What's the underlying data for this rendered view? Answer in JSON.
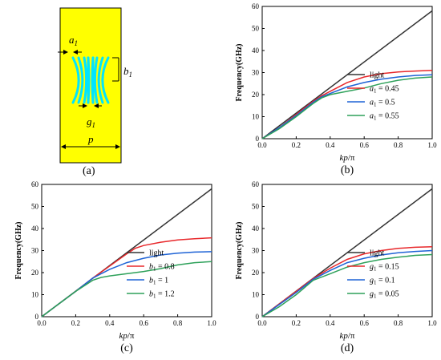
{
  "panel_a": {
    "caption": "(a)",
    "labels": {
      "a": "a",
      "a_sub": "1",
      "b": "b",
      "b_sub": "1",
      "g": "g",
      "g_sub": "1",
      "p": "p"
    },
    "colors": {
      "substrate": "#FFFF00",
      "arms": "#00E5FF",
      "outline": "#000000"
    }
  },
  "charts": [
    {
      "caption": "(b)",
      "chart_data": {
        "type": "line",
        "xlabel_base": "kp",
        "xlabel_suffix": "/π",
        "ylabel": "Frequency(GHz)",
        "xlim": [
          0,
          1
        ],
        "ylim": [
          0,
          60
        ],
        "xticks": [
          "0.0",
          "0.2",
          "0.4",
          "0.6",
          "0.8",
          "1.0"
        ],
        "yticks": [
          "0",
          "10",
          "20",
          "30",
          "40",
          "50",
          "60"
        ],
        "legend_position": "bottom-right",
        "series": [
          {
            "name": "light",
            "color": "#333333",
            "x": [
              0,
              1
            ],
            "y": [
              0,
              58
            ]
          },
          {
            "name_parts": [
              "a",
              "1",
              " = 0.45"
            ],
            "color": "#E8282B",
            "x": [
              0,
              0.1,
              0.2,
              0.3,
              0.35,
              0.4,
              0.5,
              0.6,
              0.7,
              0.8,
              0.9,
              1.0
            ],
            "y": [
              0,
              5,
              11,
              17,
              19.5,
              21.5,
              25.5,
              28,
              29.5,
              30.3,
              30.7,
              31
            ]
          },
          {
            "name_parts": [
              "a",
              "1",
              " = 0.5"
            ],
            "color": "#1E63D6",
            "x": [
              0,
              0.1,
              0.2,
              0.3,
              0.35,
              0.4,
              0.5,
              0.6,
              0.7,
              0.8,
              0.9,
              1.0
            ],
            "y": [
              0,
              5,
              10.5,
              16.5,
              19,
              20.5,
              23.5,
              25.5,
              27,
              28,
              28.7,
              29
            ]
          },
          {
            "name_parts": [
              "a",
              "1",
              " = 0.55"
            ],
            "color": "#2EA15A",
            "x": [
              0,
              0.1,
              0.2,
              0.3,
              0.35,
              0.4,
              0.5,
              0.6,
              0.7,
              0.8,
              0.9,
              1.0
            ],
            "y": [
              0,
              4.5,
              10,
              16,
              18.5,
              20,
              21.5,
              23,
              25,
              26.5,
              27.5,
              28
            ]
          }
        ]
      }
    },
    {
      "caption": "(c)",
      "chart_data": {
        "type": "line",
        "xlabel_base": "kp",
        "xlabel_suffix": "/π",
        "ylabel": "Frequency(GHz)",
        "xlim": [
          0,
          1
        ],
        "ylim": [
          0,
          60
        ],
        "xticks": [
          "0.0",
          "0.2",
          "0.4",
          "0.6",
          "0.8",
          "1.0"
        ],
        "yticks": [
          "0",
          "10",
          "20",
          "30",
          "40",
          "50",
          "60"
        ],
        "legend_position": "bottom-right",
        "series": [
          {
            "name": "light",
            "color": "#333333",
            "x": [
              0,
              1
            ],
            "y": [
              0,
              58
            ]
          },
          {
            "name_parts": [
              "b",
              "1",
              " = 0.8"
            ],
            "color": "#E8282B",
            "x": [
              0,
              0.1,
              0.2,
              0.3,
              0.4,
              0.5,
              0.55,
              0.6,
              0.7,
              0.8,
              0.9,
              1.0
            ],
            "y": [
              0,
              5.8,
              11.5,
              17.5,
              23,
              28.5,
              31,
              32.3,
              33.8,
              34.8,
              35.4,
              35.8
            ]
          },
          {
            "name_parts": [
              "b",
              "1",
              " = 1"
            ],
            "color": "#1E63D6",
            "x": [
              0,
              0.1,
              0.2,
              0.3,
              0.4,
              0.5,
              0.6,
              0.7,
              0.8,
              0.9,
              1.0
            ],
            "y": [
              0,
              5.8,
              11.5,
              17.5,
              21.5,
              24.5,
              26.5,
              28,
              28.8,
              29.3,
              29.5
            ]
          },
          {
            "name_parts": [
              "b",
              "1",
              " = 1.2"
            ],
            "color": "#2EA15A",
            "x": [
              0,
              0.1,
              0.2,
              0.3,
              0.35,
              0.4,
              0.5,
              0.6,
              0.7,
              0.8,
              0.9,
              1.0
            ],
            "y": [
              0,
              5.8,
              11.5,
              16.5,
              17.8,
              18.5,
              19.5,
              20.5,
              21.8,
              23.5,
              24.5,
              25
            ]
          }
        ]
      }
    },
    {
      "caption": "(d)",
      "chart_data": {
        "type": "line",
        "xlabel_base": "kp",
        "xlabel_suffix": "/π",
        "ylabel": "Frequency(GHz)",
        "xlim": [
          0,
          1
        ],
        "ylim": [
          0,
          60
        ],
        "xticks": [
          "0.0",
          "0.2",
          "0.4",
          "0.6",
          "0.8",
          "1.0"
        ],
        "yticks": [
          "0",
          "10",
          "20",
          "30",
          "40",
          "50",
          "60"
        ],
        "legend_position": "bottom-right",
        "series": [
          {
            "name": "light",
            "color": "#333333",
            "x": [
              0,
              1
            ],
            "y": [
              0,
              58
            ]
          },
          {
            "name_parts": [
              "g",
              "1",
              " = 0.15"
            ],
            "color": "#E8282B",
            "x": [
              0,
              0.1,
              0.2,
              0.3,
              0.4,
              0.5,
              0.6,
              0.7,
              0.8,
              0.9,
              1.0
            ],
            "y": [
              0,
              5.8,
              11.5,
              17.3,
              22,
              26,
              28.5,
              30,
              31,
              31.5,
              31.7
            ]
          },
          {
            "name_parts": [
              "g",
              "1",
              " = 0.1"
            ],
            "color": "#1E63D6",
            "x": [
              0,
              0.1,
              0.2,
              0.3,
              0.4,
              0.5,
              0.6,
              0.7,
              0.8,
              0.9,
              1.0
            ],
            "y": [
              0,
              5.5,
              11,
              17,
              21,
              24.5,
              26.5,
              28,
              29,
              29.6,
              30
            ]
          },
          {
            "name_parts": [
              "g",
              "1",
              " = 0.05"
            ],
            "color": "#2EA15A",
            "x": [
              0,
              0.1,
              0.2,
              0.3,
              0.4,
              0.5,
              0.6,
              0.7,
              0.8,
              0.9,
              1.0
            ],
            "y": [
              0,
              4.5,
              10,
              16.5,
              19.5,
              22.5,
              24.5,
              26,
              27,
              27.8,
              28.2
            ]
          }
        ]
      }
    }
  ]
}
